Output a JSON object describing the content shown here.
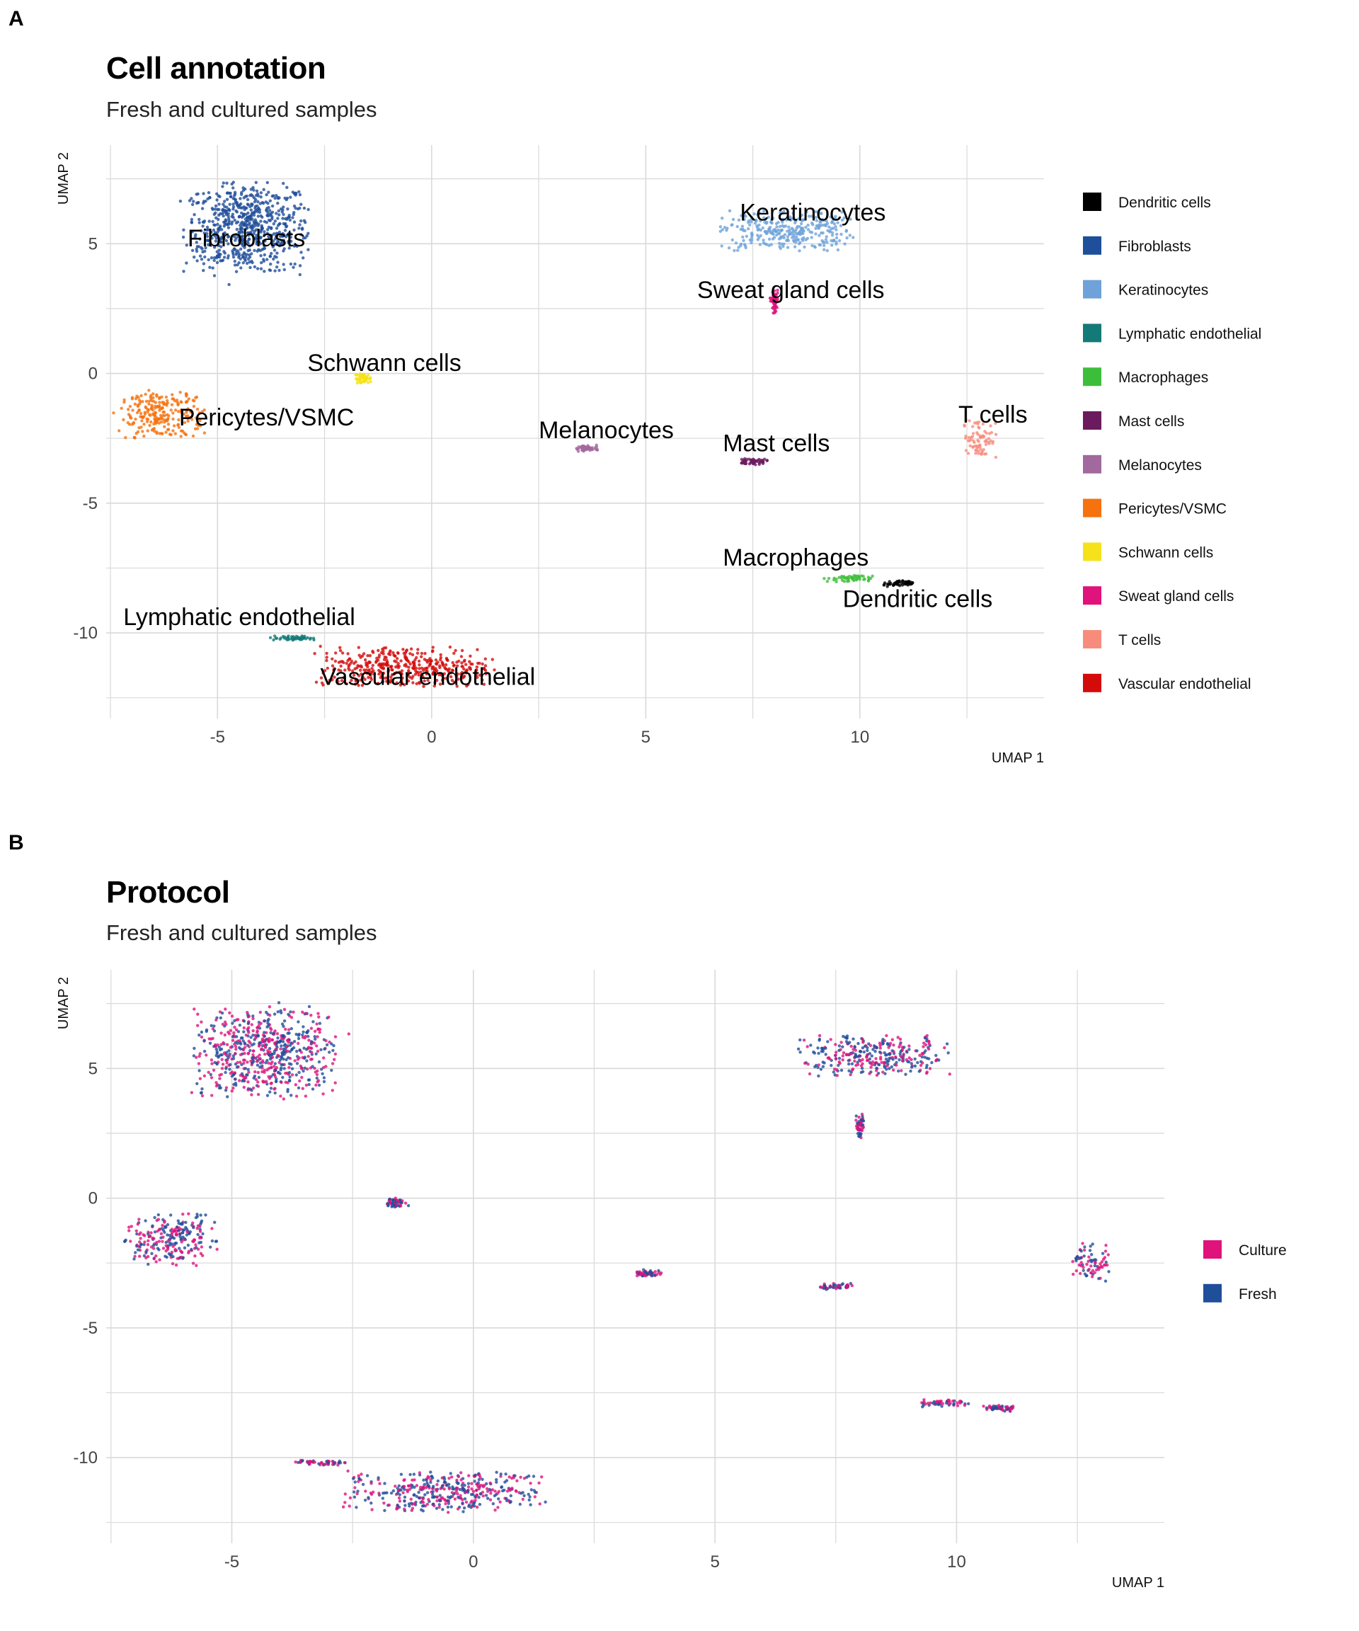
{
  "panels": [
    {
      "letter": "A",
      "title": "Cell annotation",
      "subtitle": "Fresh and cultured samples"
    },
    {
      "letter": "B",
      "title": "Protocol",
      "subtitle": "Fresh and cultured samples"
    }
  ],
  "chart_data": [
    {
      "type": "scatter",
      "title": "Cell annotation",
      "subtitle": "Fresh and cultured samples",
      "xlabel": "UMAP 1",
      "ylabel": "UMAP 2",
      "xlim": [
        -7.6,
        14.3
      ],
      "ylim": [
        -13.3,
        8.8
      ],
      "xticks": [
        -5,
        0,
        5,
        10
      ],
      "yticks": [
        5,
        0,
        -5,
        -10
      ],
      "grid": true,
      "legend_position": "right",
      "series": [
        {
          "name": "Dendritic cells",
          "color": "#000000"
        },
        {
          "name": "Fibroblasts",
          "color": "#1F4E9A"
        },
        {
          "name": "Keratinocytes",
          "color": "#6EA2D9"
        },
        {
          "name": "Lymphatic endothelial",
          "color": "#137A78"
        },
        {
          "name": "Macrophages",
          "color": "#3DBE3A"
        },
        {
          "name": "Mast cells",
          "color": "#6B1A5E"
        },
        {
          "name": "Melanocytes",
          "color": "#A2699E"
        },
        {
          "name": "Pericytes/VSMC",
          "color": "#F5720F"
        },
        {
          "name": "Schwann cells",
          "color": "#F5E21A"
        },
        {
          "name": "Sweat gland cells",
          "color": "#E0127C"
        },
        {
          "name": "T cells",
          "color": "#F88C7C"
        },
        {
          "name": "Vascular endothelial",
          "color": "#D40B0B"
        }
      ],
      "clusters": [
        {
          "name": "Fibroblasts",
          "center": [
            -4.3,
            5.6
          ],
          "spread": [
            1.5,
            1.8
          ]
        },
        {
          "name": "Keratinocytes",
          "center": [
            8.3,
            5.5
          ],
          "spread": [
            1.6,
            0.8
          ]
        },
        {
          "name": "Sweat gland cells",
          "center": [
            8.0,
            2.8
          ],
          "spread": [
            0.1,
            0.5
          ]
        },
        {
          "name": "Schwann cells",
          "center": [
            -1.6,
            -0.2
          ],
          "spread": [
            0.2,
            0.2
          ]
        },
        {
          "name": "Pericytes/VSMC",
          "center": [
            -6.3,
            -1.6
          ],
          "spread": [
            1.0,
            1.0
          ]
        },
        {
          "name": "Melanocytes",
          "center": [
            3.6,
            -2.9
          ],
          "spread": [
            0.3,
            0.15
          ]
        },
        {
          "name": "Mast cells",
          "center": [
            7.5,
            -3.4
          ],
          "spread": [
            0.35,
            0.12
          ]
        },
        {
          "name": "T cells",
          "center": [
            12.8,
            -2.5
          ],
          "spread": [
            0.4,
            0.8
          ]
        },
        {
          "name": "Macrophages",
          "center": [
            9.7,
            -7.9
          ],
          "spread": [
            0.6,
            0.15
          ]
        },
        {
          "name": "Dendritic cells",
          "center": [
            10.9,
            -8.1
          ],
          "spread": [
            0.35,
            0.12
          ]
        },
        {
          "name": "Lymphatic endothelial",
          "center": [
            -3.2,
            -10.2
          ],
          "spread": [
            0.6,
            0.1
          ]
        },
        {
          "name": "Vascular endothelial",
          "center": [
            -0.6,
            -11.3
          ],
          "spread": [
            2.1,
            0.8
          ]
        }
      ],
      "labels": [
        {
          "text": "Fibroblasts",
          "at": [
            -5.7,
            4.9
          ]
        },
        {
          "text": "Keratinocytes",
          "at": [
            7.2,
            5.9
          ]
        },
        {
          "text": "Sweat gland cells",
          "at": [
            6.2,
            2.9
          ]
        },
        {
          "text": "Schwann cells",
          "at": [
            -2.9,
            0.1
          ]
        },
        {
          "text": "Pericytes/VSMC",
          "at": [
            -5.9,
            -2.0
          ]
        },
        {
          "text": "Melanocytes",
          "at": [
            2.5,
            -2.5
          ]
        },
        {
          "text": "Mast cells",
          "at": [
            6.8,
            -3.0
          ]
        },
        {
          "text": "T cells",
          "at": [
            12.3,
            -1.9
          ]
        },
        {
          "text": "Macrophages",
          "at": [
            6.8,
            -7.4
          ]
        },
        {
          "text": "Dendritic cells",
          "at": [
            9.6,
            -9.0
          ]
        },
        {
          "text": "Lymphatic endothelial",
          "at": [
            -7.2,
            -9.7
          ]
        },
        {
          "text": "Vascular endothelial",
          "at": [
            -2.6,
            -12.0
          ]
        }
      ]
    },
    {
      "type": "scatter",
      "title": "Protocol",
      "subtitle": "Fresh and cultured samples",
      "xlabel": "UMAP 1",
      "ylabel": "UMAP 2",
      "xlim": [
        -7.6,
        14.3
      ],
      "ylim": [
        -13.3,
        8.8
      ],
      "xticks": [
        -5,
        0,
        5,
        10
      ],
      "yticks": [
        5,
        0,
        -5,
        -10
      ],
      "grid": true,
      "legend_position": "right",
      "series": [
        {
          "name": "Culture",
          "color": "#E0127C"
        },
        {
          "name": "Fresh",
          "color": "#1F4E9A"
        }
      ]
    }
  ]
}
